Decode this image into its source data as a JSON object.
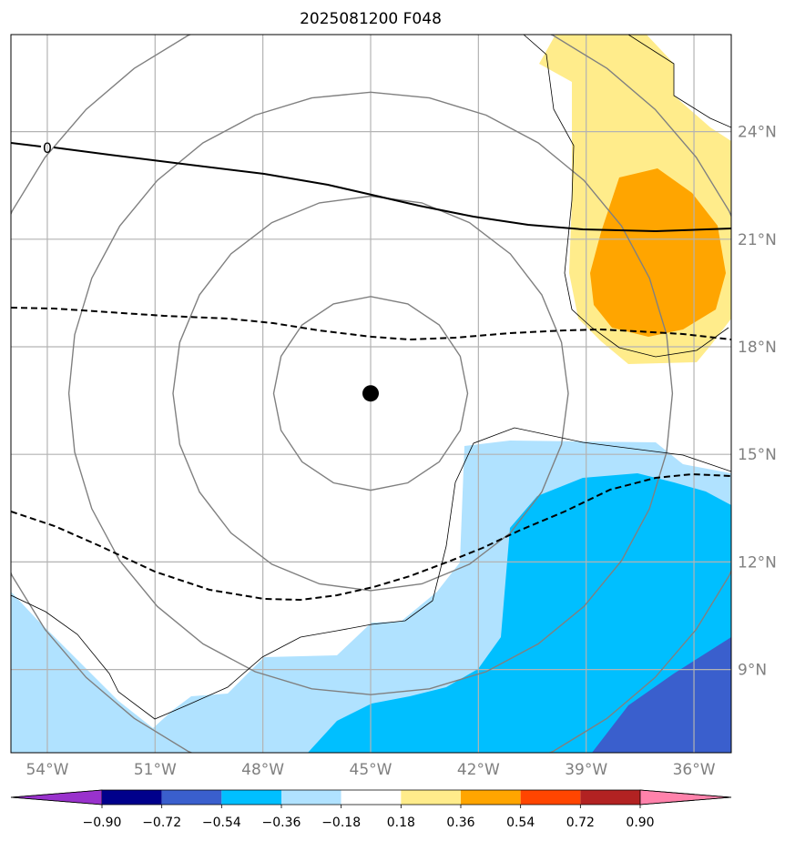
{
  "title": "2025081200 F048",
  "map": {
    "lon_range": [
      -55,
      -35
    ],
    "lat_range": [
      7,
      27
    ],
    "lon_ticks": [
      {
        "value": -54,
        "label": "54°W"
      },
      {
        "value": -51,
        "label": "51°W"
      },
      {
        "value": -48,
        "label": "48°W"
      },
      {
        "value": -45,
        "label": "45°W"
      },
      {
        "value": -42,
        "label": "42°W"
      },
      {
        "value": -39,
        "label": "39°W"
      },
      {
        "value": -36,
        "label": "36°W"
      }
    ],
    "lat_ticks": [
      {
        "value": 9,
        "label": "9°N"
      },
      {
        "value": 12,
        "label": "12°N"
      },
      {
        "value": 15,
        "label": "15°N"
      },
      {
        "value": 18,
        "label": "18°N"
      },
      {
        "value": 21,
        "label": "21°N"
      },
      {
        "value": 24,
        "label": "24°N"
      }
    ],
    "gridlines": true,
    "storm_center": {
      "lon": -45,
      "lat": 16.7
    },
    "range_rings_deg": [
      2.7,
      5.5,
      8.4,
      11.2
    ],
    "contour_label": "0"
  },
  "colorbar": {
    "levels": [
      -0.9,
      -0.72,
      -0.54,
      -0.36,
      -0.18,
      0.18,
      0.36,
      0.54,
      0.72,
      0.9
    ],
    "tick_labels": [
      "−0.90",
      "−0.72",
      "−0.54",
      "−0.36",
      "−0.18",
      "0.18",
      "0.36",
      "0.54",
      "0.72",
      "0.90"
    ],
    "colors": [
      "#9932cc",
      "#00008b",
      "#3a5fcd",
      "#00bfff",
      "#b0e2ff",
      "#ffffff",
      "#ffec8b",
      "#ffa500",
      "#ff4500",
      "#b22222",
      "#ff82ab"
    ],
    "extend": "both"
  },
  "colors": {
    "grid": "#b3b3b3",
    "ring": "#808080",
    "tick_label": "#808080",
    "center_dot": "#000000"
  }
}
